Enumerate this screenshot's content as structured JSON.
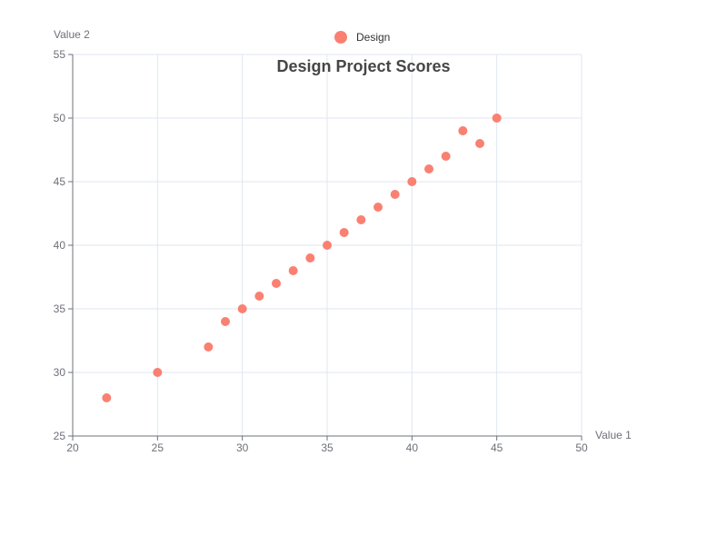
{
  "chart_data": {
    "type": "scatter",
    "title": "Design Project Scores",
    "xlabel": "Value 1",
    "ylabel": "Value 2",
    "xlim": [
      20,
      50
    ],
    "ylim": [
      25,
      55
    ],
    "xticks": [
      20,
      25,
      30,
      35,
      40,
      45,
      50
    ],
    "yticks": [
      25,
      30,
      35,
      40,
      45,
      50,
      55
    ],
    "grid": true,
    "legend_position": "top-center",
    "series": [
      {
        "name": "Design",
        "color": "#fa8072",
        "points": [
          [
            22,
            28
          ],
          [
            25,
            30
          ],
          [
            28,
            32
          ],
          [
            29,
            34
          ],
          [
            30,
            35
          ],
          [
            31,
            36
          ],
          [
            32,
            37
          ],
          [
            33,
            38
          ],
          [
            34,
            39
          ],
          [
            35,
            40
          ],
          [
            36,
            41
          ],
          [
            37,
            42
          ],
          [
            38,
            43
          ],
          [
            39,
            44
          ],
          [
            40,
            45
          ],
          [
            41,
            46
          ],
          [
            42,
            47
          ],
          [
            43,
            49
          ],
          [
            44,
            48
          ],
          [
            45,
            50
          ]
        ]
      }
    ]
  }
}
